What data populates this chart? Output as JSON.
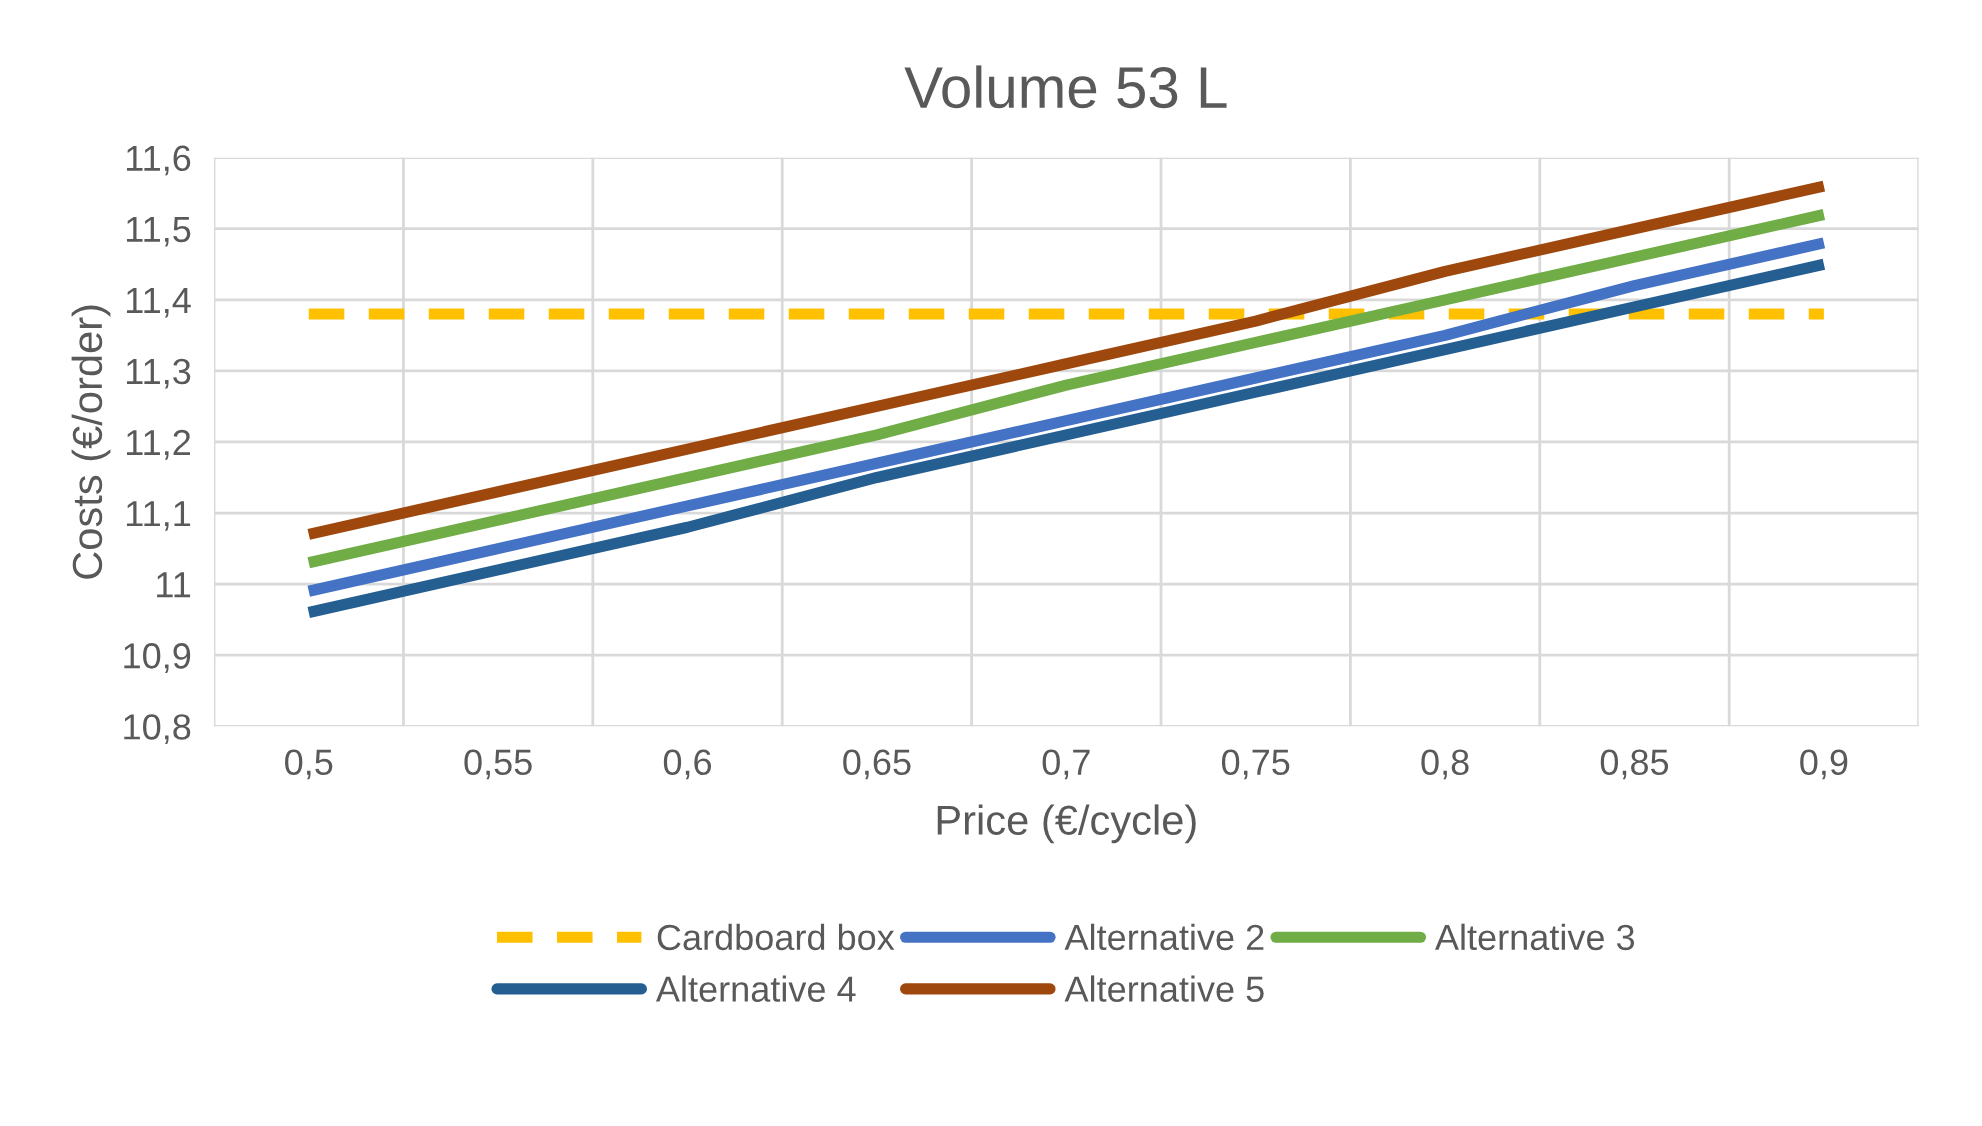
{
  "chart_data": {
    "type": "line",
    "title": "Volume 53 L",
    "xlabel": "Price (€/cycle)",
    "ylabel": "Costs (€/order)",
    "categories": [
      "0,5",
      "0,55",
      "0,6",
      "0,65",
      "0,7",
      "0,75",
      "0,8",
      "0,85",
      "0,9"
    ],
    "series": [
      {
        "name": "Cardboard box",
        "color": "#ffc000",
        "line_style": "dashed",
        "values": [
          11.38,
          11.38,
          11.38,
          11.38,
          11.38,
          11.38,
          11.38,
          11.38,
          11.38
        ]
      },
      {
        "name": "Alternative 2",
        "color": "#4472c4",
        "values": [
          10.99,
          11.05,
          11.11,
          11.17,
          11.23,
          11.29,
          11.35,
          11.42,
          11.48
        ]
      },
      {
        "name": "Alternative 3",
        "color": "#70ad47",
        "values": [
          11.03,
          11.09,
          11.15,
          11.21,
          11.28,
          11.34,
          11.4,
          11.46,
          11.52
        ]
      },
      {
        "name": "Alternative 4",
        "color": "#255e91",
        "values": [
          10.96,
          11.02,
          11.08,
          11.15,
          11.21,
          11.27,
          11.33,
          11.39,
          11.45
        ]
      },
      {
        "name": "Alternative 5",
        "color": "#9e480e",
        "values": [
          11.07,
          11.13,
          11.19,
          11.25,
          11.31,
          11.37,
          11.44,
          11.5,
          11.56
        ]
      }
    ],
    "ylim": [
      10.8,
      11.6
    ],
    "yticks": [
      {
        "value": 10.8,
        "label": "10,8"
      },
      {
        "value": 10.9,
        "label": "10,9"
      },
      11,
      {
        "value": 11.1,
        "label": "11,1"
      },
      {
        "value": 11.2,
        "label": "11,2"
      },
      {
        "value": 11.3,
        "label": "11,3"
      },
      {
        "value": 11.4,
        "label": "11,4"
      },
      {
        "value": 11.5,
        "label": "11,5"
      },
      {
        "value": 11.6,
        "label": "11,6"
      }
    ],
    "grid": true,
    "legend": "bottom",
    "line_style": "solid",
    "marker": "none"
  }
}
